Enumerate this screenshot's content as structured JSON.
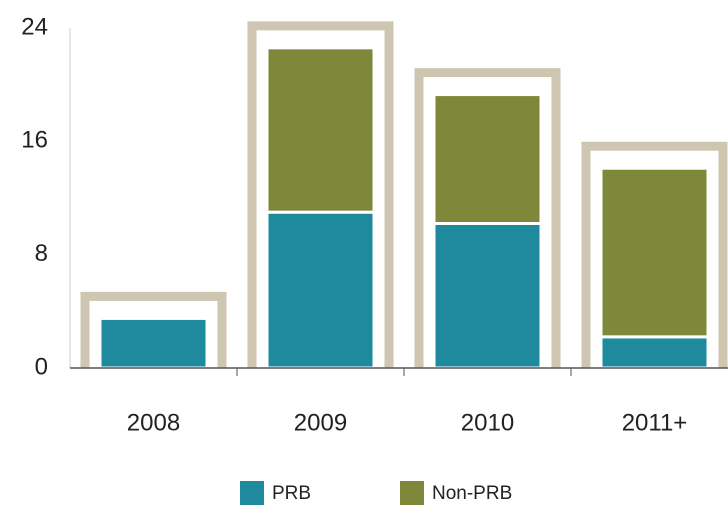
{
  "chart_data": {
    "type": "stacked-bar",
    "categories": [
      "2008",
      "2009",
      "2010",
      "2011+"
    ],
    "series": [
      {
        "name": "PRB",
        "color": "#1f8a9e",
        "values": [
          3.5,
          11,
          10.2,
          2.2
        ]
      },
      {
        "name": "Non-PRB",
        "color": "#7f873a",
        "values": [
          0,
          11.6,
          9.1,
          11.9
        ]
      }
    ],
    "ylim": [
      0,
      24
    ],
    "yticks": [
      0,
      8,
      16,
      24
    ],
    "grid": false,
    "frame_color": "#cfc6b2"
  }
}
